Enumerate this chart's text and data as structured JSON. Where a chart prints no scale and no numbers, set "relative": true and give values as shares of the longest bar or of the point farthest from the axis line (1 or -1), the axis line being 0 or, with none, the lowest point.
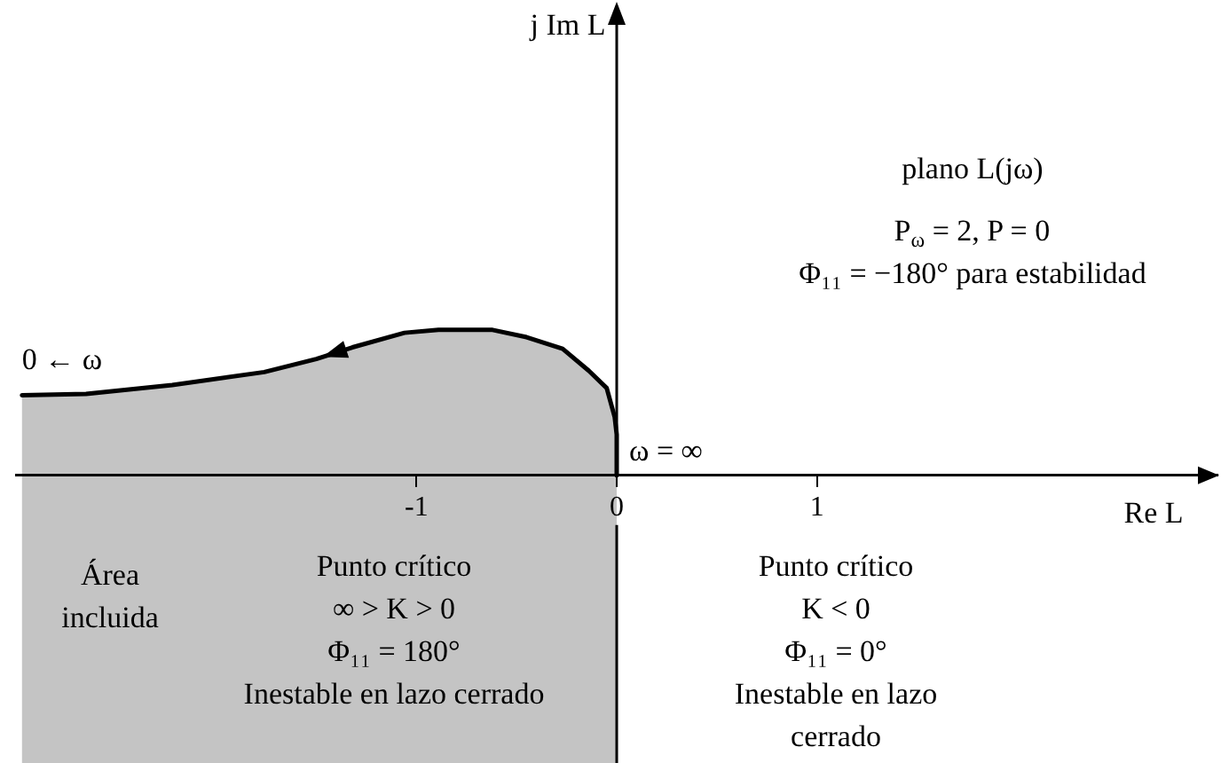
{
  "chart_data": {
    "type": "area",
    "xlabel": "Re L",
    "relative": true,
    "marker": "none",
    "tick_labels": "x",
    "x": [
      -2.97,
      -2.65,
      -2.22,
      -1.76,
      -1.5,
      -1.32,
      -1.06,
      -0.89,
      -0.62,
      -0.45,
      -0.27,
      -0.14,
      -0.05,
      -0.01,
      0,
      0
    ],
    "values": [
      0.55,
      0.56,
      0.62,
      0.71,
      0.8,
      0.88,
      0.98,
      1,
      1,
      0.95,
      0.87,
      0.72,
      0.6,
      0.4,
      0.28,
      0
    ],
    "color": "#000000",
    "xlim": [
      -3,
      3
    ],
    "xticks": [
      -1,
      0,
      1
    ],
    "annotations": [
      {
        "text": "0 ← ω",
        "x": -2.97,
        "y": 0.55
      },
      {
        "text": "ω = ∞",
        "x": 0,
        "y": 0
      },
      "j Im L",
      "plano L(jω)",
      "P$_{ω}$ = 2, P = 0\nΦ₁₁ = −180° para estabilidad",
      "Área\nincluida",
      "Punto crítico\n∞ > K > 0\nΦ₁₁ = 180°\nInestable en lazo cerrado",
      "Punto crítico\nK < 0\nΦ₁₁ = 0°\nInestable en lazo\ncerrado"
    ]
  }
}
